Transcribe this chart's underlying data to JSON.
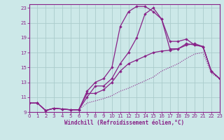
{
  "xlabel": "Windchill (Refroidissement éolien,°C)",
  "background_color": "#cce8e8",
  "grid_color": "#aacccc",
  "line_color": "#882288",
  "xlim": [
    0,
    23
  ],
  "ylim": [
    9,
    23.5
  ],
  "yticks": [
    9,
    11,
    13,
    15,
    17,
    19,
    21,
    23
  ],
  "xticks": [
    0,
    1,
    2,
    3,
    4,
    5,
    6,
    7,
    8,
    9,
    10,
    11,
    12,
    13,
    14,
    15,
    16,
    17,
    18,
    19,
    20,
    21,
    22,
    23
  ],
  "lines": [
    {
      "x": [
        0,
        1,
        2,
        3,
        4,
        5,
        6,
        7,
        8,
        9,
        10,
        11,
        12,
        13,
        14,
        15,
        16,
        17,
        18,
        19,
        20,
        21,
        22,
        23
      ],
      "y": [
        10.2,
        10.2,
        9.2,
        9.5,
        9.4,
        9.3,
        9.3,
        10.2,
        10.5,
        10.8,
        11.2,
        11.8,
        12.2,
        12.7,
        13.2,
        13.7,
        14.5,
        15.0,
        15.5,
        16.2,
        16.8,
        17.0,
        14.2,
        13.5
      ],
      "marker": false,
      "linestyle": "dotted",
      "lw": 0.8
    },
    {
      "x": [
        0,
        1,
        2,
        3,
        4,
        5,
        6,
        7,
        8,
        9,
        10,
        11,
        12,
        13,
        14,
        15,
        16,
        17,
        18,
        19,
        20,
        21,
        22,
        23
      ],
      "y": [
        10.2,
        10.2,
        9.2,
        9.5,
        9.4,
        9.3,
        9.3,
        11.5,
        11.5,
        12.0,
        13.0,
        14.5,
        15.5,
        16.0,
        16.5,
        17.0,
        17.2,
        17.3,
        17.5,
        18.0,
        18.2,
        17.8,
        14.5,
        13.5
      ],
      "marker": true,
      "linestyle": "solid",
      "lw": 0.9
    },
    {
      "x": [
        0,
        1,
        2,
        3,
        4,
        5,
        6,
        7,
        8,
        9,
        10,
        11,
        12,
        13,
        14,
        15,
        16,
        17,
        18,
        19,
        20,
        21,
        22,
        23
      ],
      "y": [
        10.2,
        10.2,
        9.2,
        9.5,
        9.4,
        9.3,
        9.3,
        11.0,
        12.5,
        12.5,
        13.5,
        15.5,
        17.0,
        19.0,
        22.2,
        23.0,
        21.5,
        17.5,
        17.5,
        18.2,
        18.0,
        17.8,
        14.5,
        13.5
      ],
      "marker": true,
      "linestyle": "solid",
      "lw": 0.9
    },
    {
      "x": [
        0,
        1,
        2,
        3,
        4,
        5,
        6,
        7,
        8,
        9,
        10,
        11,
        12,
        13,
        14,
        15,
        16,
        17,
        18,
        19,
        20,
        21,
        22,
        23
      ],
      "y": [
        10.2,
        10.2,
        9.2,
        9.5,
        9.4,
        9.3,
        9.3,
        11.8,
        13.0,
        13.5,
        15.0,
        20.5,
        22.5,
        23.2,
        23.2,
        22.5,
        21.5,
        18.5,
        18.5,
        18.8,
        18.0,
        17.8,
        14.5,
        13.5
      ],
      "marker": true,
      "linestyle": "solid",
      "lw": 0.9
    }
  ]
}
